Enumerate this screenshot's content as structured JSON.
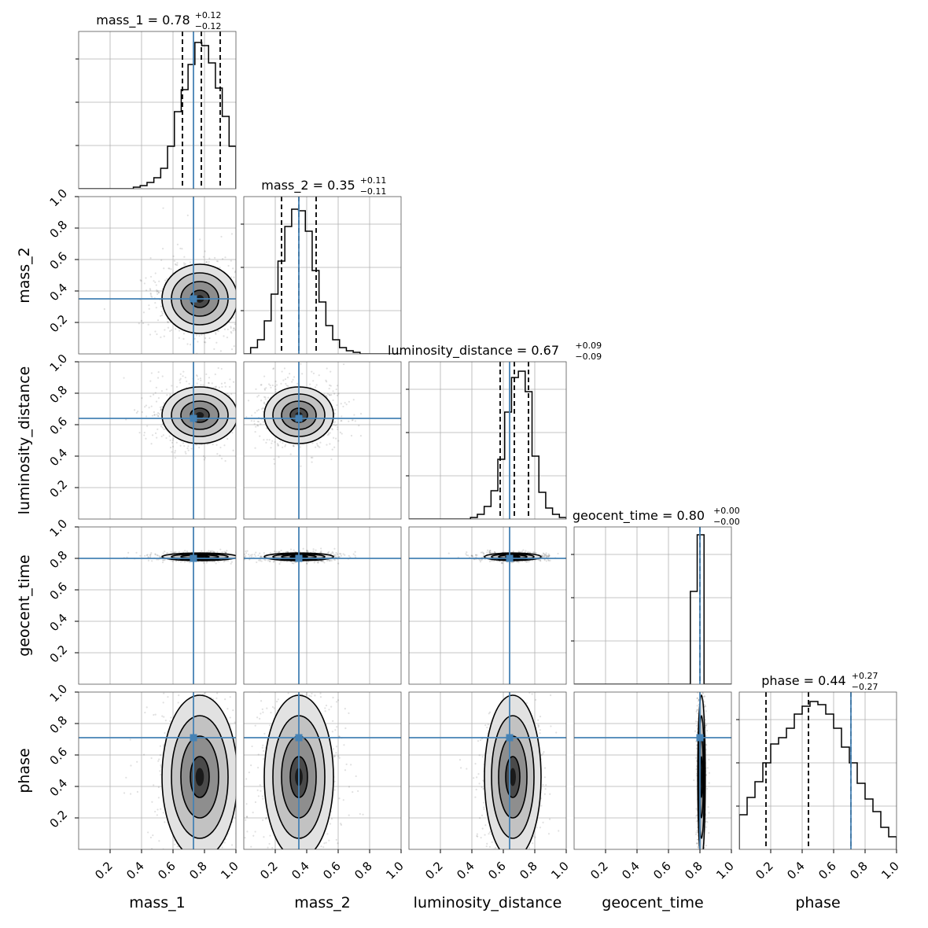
{
  "chart_data": {
    "type": "corner",
    "parameters": [
      "mass_1",
      "mass_2",
      "luminosity_distance",
      "geocent_time",
      "phase"
    ],
    "axis_range": [
      0,
      1
    ],
    "tick_values": [
      0.2,
      0.4,
      0.6,
      0.8,
      1.0
    ],
    "tick_labels": [
      "0.2",
      "0.4",
      "0.6",
      "0.8",
      "1.0"
    ],
    "truths": [
      0.73,
      0.35,
      0.64,
      0.8,
      0.71
    ],
    "marginals": [
      {
        "name": "mass_1",
        "median": 0.78,
        "lower": 0.66,
        "upper": 0.9,
        "title": {
          "text": "mass_1 = 0.78",
          "plus": "+0.12",
          "minus": "−0.12"
        },
        "hist": [
          0,
          0,
          0,
          0,
          0,
          0,
          0,
          0,
          0.01,
          0.02,
          0.04,
          0.07,
          0.13,
          0.27,
          0.49,
          0.63,
          0.79,
          0.93,
          0.91,
          0.8,
          0.64,
          0.46,
          0.27
        ]
      },
      {
        "name": "mass_2",
        "median": 0.35,
        "lower": 0.24,
        "upper": 0.46,
        "title": {
          "text": "mass_2 = 0.35",
          "plus": "+0.11",
          "minus": "−0.11"
        },
        "hist": [
          0,
          0.04,
          0.09,
          0.21,
          0.38,
          0.59,
          0.81,
          0.92,
          0.91,
          0.78,
          0.53,
          0.33,
          0.18,
          0.09,
          0.04,
          0.02,
          0.01,
          0,
          0,
          0,
          0,
          0,
          0
        ]
      },
      {
        "name": "luminosity_distance",
        "median": 0.67,
        "lower": 0.58,
        "upper": 0.76,
        "title": {
          "text": "luminosity_distance = 0.67",
          "plus": "+0.09",
          "minus": "−0.09"
        },
        "hist": [
          0,
          0,
          0,
          0,
          0,
          0,
          0,
          0,
          0,
          0.01,
          0.03,
          0.08,
          0.18,
          0.38,
          0.68,
          0.9,
          0.94,
          0.81,
          0.4,
          0.17,
          0.07,
          0.03,
          0.01
        ]
      },
      {
        "name": "geocent_time",
        "median": 0.8,
        "lower": 0.8,
        "upper": 0.8,
        "title": {
          "text": "geocent_time = 0.80",
          "plus": "+0.00",
          "minus": "−0.00"
        },
        "hist": [
          0,
          0,
          0,
          0,
          0,
          0,
          0,
          0,
          0,
          0,
          0,
          0,
          0,
          0,
          0,
          0,
          0,
          0.59,
          0.95,
          0,
          0,
          0,
          0
        ]
      },
      {
        "name": "phase",
        "median": 0.44,
        "lower": 0.17,
        "upper": 0.71,
        "title": {
          "text": "phase = 0.44",
          "plus": "+0.27",
          "minus": "−0.27"
        },
        "hist": [
          0.22,
          0.33,
          0.43,
          0.55,
          0.67,
          0.71,
          0.77,
          0.86,
          0.91,
          0.94,
          0.92,
          0.86,
          0.77,
          0.65,
          0.55,
          0.42,
          0.32,
          0.24,
          0.14,
          0.08
        ]
      }
    ],
    "posterior_2d": [
      {
        "x": "mass_1",
        "y": "mass_2",
        "x_mean": 0.77,
        "y_mean": 0.35,
        "x_sd": 0.12,
        "y_sd": 0.11
      },
      {
        "x": "mass_1",
        "y": "luminosity_distance",
        "x_mean": 0.77,
        "y_mean": 0.66,
        "x_sd": 0.12,
        "y_sd": 0.09
      },
      {
        "x": "mass_2",
        "y": "luminosity_distance",
        "x_mean": 0.35,
        "y_mean": 0.66,
        "x_sd": 0.11,
        "y_sd": 0.09
      },
      {
        "x": "mass_1",
        "y": "geocent_time",
        "x_mean": 0.77,
        "y_mean": 0.81,
        "x_sd": 0.12,
        "y_sd": 0.012
      },
      {
        "x": "mass_2",
        "y": "geocent_time",
        "x_mean": 0.35,
        "y_mean": 0.81,
        "x_sd": 0.11,
        "y_sd": 0.012
      },
      {
        "x": "luminosity_distance",
        "y": "geocent_time",
        "x_mean": 0.66,
        "y_mean": 0.81,
        "x_sd": 0.09,
        "y_sd": 0.012
      },
      {
        "x": "mass_1",
        "y": "phase",
        "x_mean": 0.77,
        "y_mean": 0.46,
        "x_sd": 0.12,
        "y_sd": 0.26
      },
      {
        "x": "mass_2",
        "y": "phase",
        "x_mean": 0.35,
        "y_mean": 0.46,
        "x_sd": 0.11,
        "y_sd": 0.26
      },
      {
        "x": "luminosity_distance",
        "y": "phase",
        "x_mean": 0.66,
        "y_mean": 0.46,
        "x_sd": 0.09,
        "y_sd": 0.26
      },
      {
        "x": "geocent_time",
        "y": "phase",
        "x_mean": 0.81,
        "y_mean": 0.46,
        "x_sd": 0.012,
        "y_sd": 0.26
      }
    ],
    "contour_levels_sigma": [
      0.5,
      1.0,
      1.5,
      2.0
    ],
    "grid": true,
    "legend": "none",
    "colors": {
      "truth": "#4682b4",
      "hist": "#000000",
      "quantile": "#000000",
      "grid": "#b0b0b0",
      "scatter": "#000000"
    }
  }
}
